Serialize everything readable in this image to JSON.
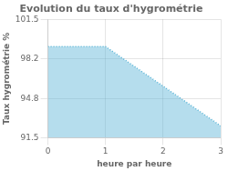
{
  "chart_data": {
    "type": "area",
    "title": "Evolution du taux d'hygrométrie",
    "xlabel": "heure par heure",
    "ylabel": "Taux hygrométrie %",
    "x": [
      0,
      1,
      3
    ],
    "values": [
      99.2,
      99.2,
      92.5
    ],
    "xlim": [
      0,
      3
    ],
    "ylim": [
      91.5,
      101.5
    ],
    "xticks": [
      0,
      1,
      2,
      3
    ],
    "yticks": [
      91.5,
      94.8,
      98.2,
      101.5
    ],
    "color": "#5ab4d6",
    "line_style": "dotted",
    "grid": true
  }
}
